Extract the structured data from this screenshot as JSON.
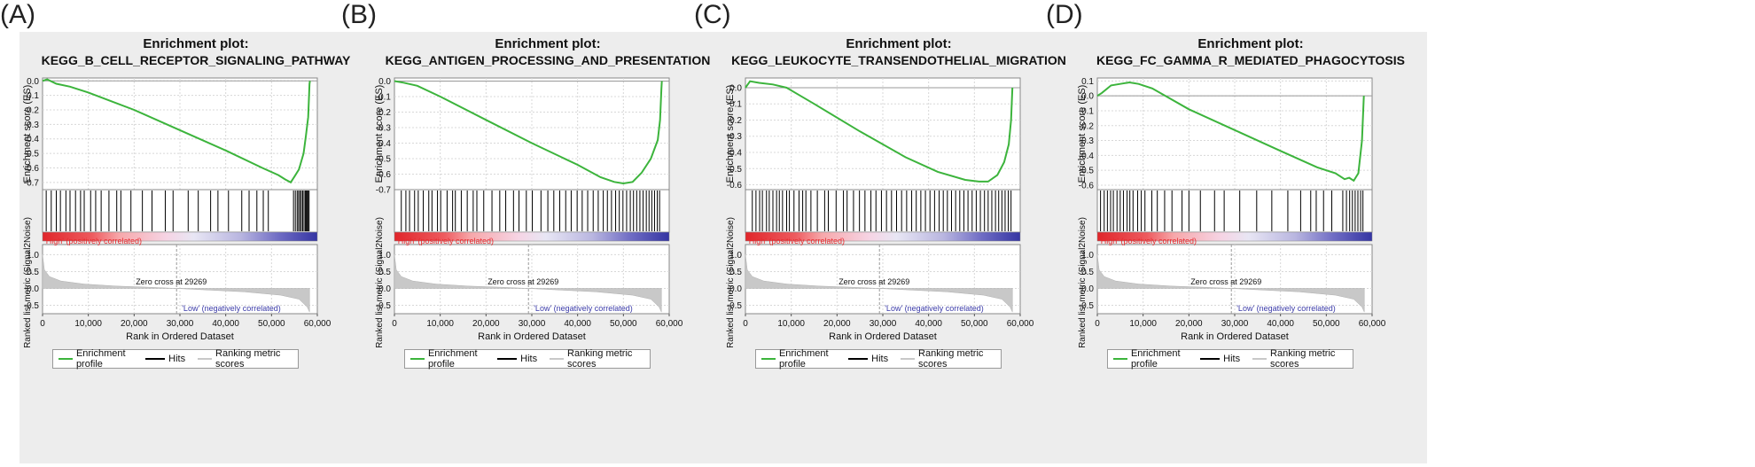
{
  "colors": {
    "es_line": "#3cb43c",
    "hits": "#000000",
    "ranking": "#c8c8c8",
    "high": "#e8292d",
    "low": "#3a3aa8"
  },
  "legend": {
    "profile": "Enrichment profile",
    "hits": "Hits",
    "ranking": "Ranking metric scores"
  },
  "common": {
    "title_prefix": "Enrichment plot:",
    "es_ylabel": "Enrichment score (ES)",
    "rank_ylabel": "Ranked list metric (Signal2Noise)",
    "xlabel": "Rank in Ordered Dataset",
    "high_label": "'High' (positively correlated)",
    "low_label": "'Low' (negatively correlated)",
    "zero_cross": "Zero cross at 29269",
    "x_ticks": [
      "0",
      "10,000",
      "20,000",
      "30,000",
      "40,000",
      "50,000",
      "60,000"
    ],
    "rank_ticks": [
      "1.0",
      "0.5",
      "0.0",
      "-0.5"
    ]
  },
  "chart_data": [
    {
      "type": "line",
      "panel_label": "(A)",
      "title": "KEGG_B_CELL_RECEPTOR_SIGNALING_PATHWAY",
      "x_range": [
        0,
        60000
      ],
      "es_ticks": [
        "0.0",
        "-0.1",
        "-0.2",
        "-0.3",
        "-0.4",
        "-0.5",
        "-0.6",
        "-0.7"
      ],
      "es_ylim": [
        -0.75,
        0.02
      ],
      "es_points": [
        [
          0,
          0.0
        ],
        [
          1000,
          0.01
        ],
        [
          3000,
          -0.02
        ],
        [
          6000,
          -0.04
        ],
        [
          10000,
          -0.08
        ],
        [
          20000,
          -0.2
        ],
        [
          30000,
          -0.34
        ],
        [
          40000,
          -0.48
        ],
        [
          48000,
          -0.6
        ],
        [
          51500,
          -0.65
        ],
        [
          53000,
          -0.68
        ],
        [
          54200,
          -0.7
        ],
        [
          55000,
          -0.66
        ],
        [
          56000,
          -0.61
        ],
        [
          57000,
          -0.5
        ],
        [
          57500,
          -0.38
        ],
        [
          58000,
          -0.25
        ],
        [
          58300,
          -0.02
        ],
        [
          58400,
          0.0
        ]
      ],
      "hits": [
        800,
        1900,
        3000,
        3900,
        5100,
        6000,
        7200,
        8300,
        9100,
        10500,
        11600,
        12800,
        14500,
        16200,
        17100,
        19300,
        21800,
        23900,
        26800,
        28500,
        31800,
        34000,
        36700,
        38300,
        40600,
        43500,
        45100,
        46800,
        48200,
        49300,
        54800,
        55200,
        55600,
        55900,
        56200,
        56500,
        56800,
        57100,
        57400,
        57600,
        57800,
        58000,
        58200
      ]
    },
    {
      "type": "line",
      "panel_label": "(B)",
      "title": "KEGG_ANTIGEN_PROCESSING_AND_PRESENTATION",
      "x_range": [
        0,
        60000
      ],
      "es_ticks": [
        "0.0",
        "-0.1",
        "-0.2",
        "-0.3",
        "-0.4",
        "-0.5",
        "-0.6",
        "-0.7"
      ],
      "es_ylim": [
        -0.7,
        0.02
      ],
      "es_points": [
        [
          0,
          0.0
        ],
        [
          2000,
          -0.01
        ],
        [
          5000,
          -0.03
        ],
        [
          10000,
          -0.1
        ],
        [
          20000,
          -0.25
        ],
        [
          30000,
          -0.4
        ],
        [
          40000,
          -0.54
        ],
        [
          45000,
          -0.62
        ],
        [
          48000,
          -0.65
        ],
        [
          50000,
          -0.66
        ],
        [
          52000,
          -0.65
        ],
        [
          54000,
          -0.59
        ],
        [
          56000,
          -0.5
        ],
        [
          57500,
          -0.38
        ],
        [
          58000,
          -0.25
        ],
        [
          58300,
          -0.05
        ],
        [
          58400,
          0.0
        ]
      ],
      "hits": [
        1500,
        2500,
        3300,
        4400,
        5200,
        6300,
        7500,
        8200,
        9400,
        10100,
        11500,
        12700,
        13300,
        14600,
        15900,
        17200,
        18000,
        19500,
        21300,
        23000,
        24300,
        26000,
        27200,
        28800,
        30100,
        32000,
        33500,
        34800,
        36100,
        37400,
        38600,
        39900,
        41000,
        42200,
        43400,
        44500,
        45600,
        46500,
        47400,
        48300,
        49100,
        49900,
        50700,
        51500,
        52200,
        52900,
        53600,
        54300,
        55000,
        55600,
        56200,
        56800,
        57400,
        57900
      ]
    },
    {
      "type": "line",
      "panel_label": "(C)",
      "title": "KEGG_LEUKOCYTE_TRANSENDOTHELIAL_MIGRATION",
      "x_range": [
        0,
        60000
      ],
      "es_ticks": [
        "0.0",
        "-0.1",
        "-0.2",
        "-0.3",
        "-0.4",
        "-0.5",
        "-0.6"
      ],
      "es_ylim": [
        -0.63,
        0.06
      ],
      "es_points": [
        [
          0,
          0.0
        ],
        [
          1000,
          0.04
        ],
        [
          3000,
          0.03
        ],
        [
          6000,
          0.02
        ],
        [
          9000,
          0.0
        ],
        [
          15000,
          -0.1
        ],
        [
          25000,
          -0.27
        ],
        [
          35000,
          -0.43
        ],
        [
          42000,
          -0.52
        ],
        [
          48000,
          -0.57
        ],
        [
          51000,
          -0.58
        ],
        [
          53000,
          -0.58
        ],
        [
          55000,
          -0.54
        ],
        [
          56500,
          -0.46
        ],
        [
          57500,
          -0.35
        ],
        [
          58000,
          -0.2
        ],
        [
          58300,
          0.0
        ]
      ],
      "hits": [
        1500,
        2300,
        3100,
        3700,
        4600,
        5200,
        6000,
        6800,
        7400,
        8100,
        9000,
        9600,
        10600,
        11700,
        12500,
        13200,
        14300,
        15700,
        17300,
        18100,
        19800,
        21400,
        22200,
        23600,
        24900,
        26100,
        27400,
        28500,
        29700,
        30800,
        31900,
        33000,
        34100,
        35200,
        36300,
        37300,
        38300,
        39300,
        40300,
        41300,
        42300,
        43200,
        44100,
        45000,
        45900,
        46800,
        47700,
        48600,
        49500,
        50400,
        51300,
        52200,
        53000,
        53800,
        54600,
        55300,
        56000,
        56700,
        57400,
        58000
      ]
    },
    {
      "type": "line",
      "panel_label": "(D)",
      "title": "KEGG_FC_GAMMA_R_MEDIATED_PHAGOCYTOSIS",
      "x_range": [
        0,
        60000
      ],
      "es_ticks": [
        "0.1",
        "0.0",
        "-0.1",
        "-0.2",
        "-0.3",
        "-0.4",
        "-0.5",
        "-0.6"
      ],
      "es_ylim": [
        -0.63,
        0.12
      ],
      "es_points": [
        [
          0,
          0.0
        ],
        [
          1000,
          0.02
        ],
        [
          3000,
          0.07
        ],
        [
          5000,
          0.08
        ],
        [
          7000,
          0.09
        ],
        [
          9000,
          0.08
        ],
        [
          12000,
          0.05
        ],
        [
          20000,
          -0.09
        ],
        [
          30000,
          -0.23
        ],
        [
          40000,
          -0.37
        ],
        [
          48000,
          -0.48
        ],
        [
          52000,
          -0.52
        ],
        [
          54000,
          -0.56
        ],
        [
          55000,
          -0.55
        ],
        [
          56000,
          -0.57
        ],
        [
          57000,
          -0.52
        ],
        [
          57800,
          -0.3
        ],
        [
          58200,
          0.0
        ]
      ],
      "hits": [
        700,
        1500,
        2200,
        2900,
        3500,
        4300,
        5000,
        5700,
        6500,
        7100,
        7800,
        8800,
        9600,
        10400,
        11900,
        13100,
        14700,
        16300,
        18500,
        20000,
        22500,
        25600,
        27700,
        31100,
        34800,
        38100,
        41600,
        44400,
        46600,
        47800,
        49400,
        51200,
        53600,
        54400,
        55100,
        55700,
        56300,
        56900,
        57500,
        58000
      ]
    }
  ]
}
